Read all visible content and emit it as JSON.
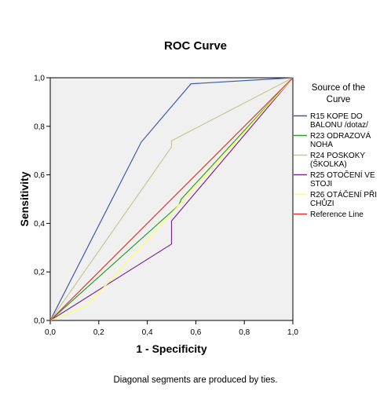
{
  "chart_data": {
    "type": "line",
    "title": "ROC Curve",
    "xlabel": "1 - Specificity",
    "ylabel": "Sensitivity",
    "xlim": [
      0,
      1
    ],
    "ylim": [
      0,
      1
    ],
    "x_ticks": [
      "0,0",
      "0,2",
      "0,4",
      "0,6",
      "0,8",
      "1,0"
    ],
    "y_ticks": [
      "0,0",
      "0,2",
      "0,4",
      "0,6",
      "0,8",
      "1,0"
    ],
    "grid": false,
    "legend_position": "right",
    "legend_title_lines": [
      "Source of the",
      "Curve"
    ],
    "footnote": "Diagonal segments are produced by ties.",
    "series": [
      {
        "name": "R15 KOPE DO BALONU /dotaz/",
        "label_lines": [
          "R15 KOPE DO",
          "BALONU /dotaz/"
        ],
        "color": "#3c5aa6",
        "points": [
          [
            0,
            0
          ],
          [
            0.375,
            0.735
          ],
          [
            0.58,
            0.975
          ],
          [
            1,
            1
          ]
        ]
      },
      {
        "name": "R23 ODRAZOVÁ NOHA",
        "label_lines": [
          "R23 ODRAZOVÁ",
          "NOHA"
        ],
        "color": "#2ca02c",
        "points": [
          [
            0,
            0
          ],
          [
            0.53,
            0.475
          ],
          [
            0.54,
            0.5
          ],
          [
            1,
            1
          ]
        ]
      },
      {
        "name": "R24 POSKOKY (ŠKOLKA)",
        "label_lines": [
          "R24 POSKOKY",
          "(ŠKOLKA)"
        ],
        "color": "#c8c890",
        "points": [
          [
            0,
            0
          ],
          [
            0.5,
            0.715
          ],
          [
            0.5,
            0.74
          ],
          [
            1,
            1
          ]
        ]
      },
      {
        "name": "R25 OTOČENÍ VE STOJI",
        "label_lines": [
          "R25 OTOČENÍ VE",
          "STOJI"
        ],
        "color": "#7b2a8b",
        "points": [
          [
            0,
            0
          ],
          [
            0.5,
            0.315
          ],
          [
            0.5,
            0.41
          ],
          [
            1,
            1
          ]
        ]
      },
      {
        "name": "R26 OTÁČENÍ PŘI CHŮZI",
        "label_lines": [
          "R26 OTÁČENÍ PŘI",
          "CHŮZI"
        ],
        "color": "#ffff66",
        "points": [
          [
            0,
            0
          ],
          [
            0.15,
            0.06
          ],
          [
            0.4,
            0.33
          ],
          [
            1,
            1
          ]
        ]
      },
      {
        "name": "Reference Line",
        "label_lines": [
          "Reference Line"
        ],
        "color": "#e8302a",
        "points": [
          [
            0,
            0
          ],
          [
            1,
            1
          ]
        ]
      }
    ]
  }
}
